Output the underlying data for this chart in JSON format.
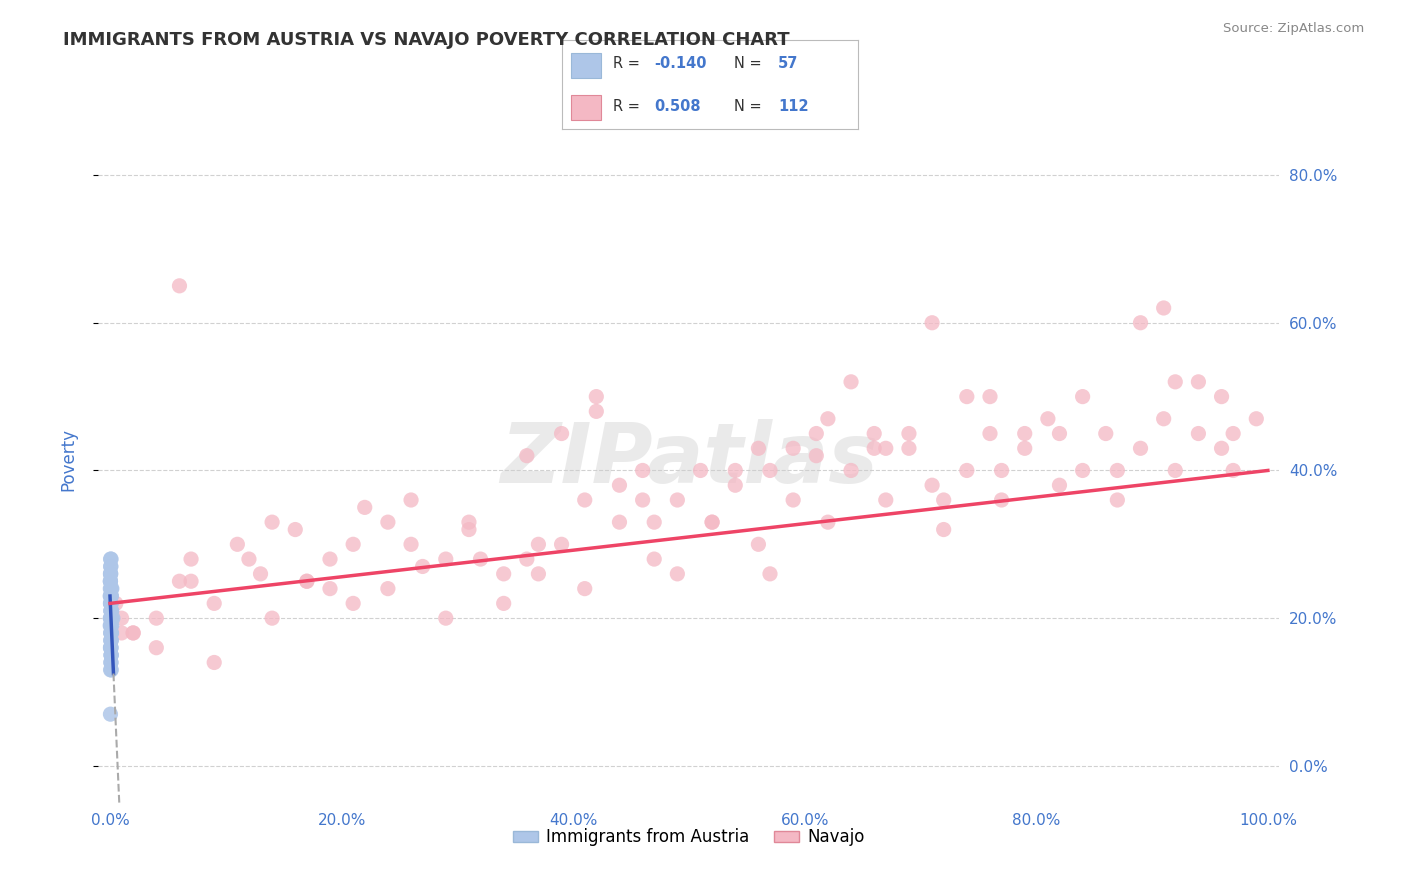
{
  "title": "IMMIGRANTS FROM AUSTRIA VS NAVAJO POVERTY CORRELATION CHART",
  "source": "Source: ZipAtlas.com",
  "ylabel": "Poverty",
  "watermark": "ZIPatlas",
  "legend_label1": "Immigrants from Austria",
  "legend_label2": "Navajo",
  "R1": -0.14,
  "N1": 57,
  "R2": 0.508,
  "N2": 112,
  "color1": "#aec6e8",
  "color2": "#f4b8c4",
  "trendline1_color": "#3355bb",
  "trendline2_color": "#ee4466",
  "background_color": "#ffffff",
  "grid_color": "#cccccc",
  "title_color": "#333333",
  "axis_label_color": "#4477cc",
  "xlim": [
    0,
    100
  ],
  "ylim": [
    -5,
    88
  ],
  "yticks": [
    0,
    20,
    40,
    60,
    80
  ],
  "xticks": [
    0,
    20,
    40,
    60,
    80,
    100
  ],
  "blue_dots_x": [
    0.05,
    0.08,
    0.1,
    0.03,
    0.06,
    0.12,
    0.04,
    0.07,
    0.09,
    0.15,
    0.02,
    0.05,
    0.08,
    0.1,
    0.13,
    0.06,
    0.04,
    0.03,
    0.09,
    0.11,
    0.16,
    0.07,
    0.05,
    0.08,
    0.04,
    0.1,
    0.06,
    0.03,
    0.12,
    0.09,
    0.05,
    0.14,
    0.07,
    0.06,
    0.11,
    0.03,
    0.08,
    0.05,
    0.1,
    0.04,
    0.07,
    0.09,
    0.13,
    0.05,
    0.06,
    0.08,
    0.04,
    0.11,
    0.03,
    0.07,
    0.15,
    0.06,
    0.09,
    0.05,
    0.08,
    0.04,
    0.25
  ],
  "blue_dots_y": [
    26,
    22,
    24,
    20,
    18,
    23,
    25,
    27,
    15,
    21,
    19,
    28,
    17,
    23,
    20,
    16,
    22,
    25,
    14,
    18,
    24,
    20,
    23,
    19,
    16,
    21,
    26,
    24,
    17,
    15,
    22,
    20,
    18,
    27,
    13,
    23,
    21,
    19,
    16,
    25,
    14,
    22,
    18,
    20,
    17,
    24,
    26,
    15,
    23,
    21,
    19,
    16,
    28,
    13,
    22,
    7,
    20
  ],
  "pink_dots_x": [
    0.5,
    1,
    2,
    4,
    6,
    7,
    9,
    11,
    13,
    14,
    16,
    17,
    19,
    21,
    22,
    24,
    26,
    27,
    29,
    31,
    32,
    34,
    36,
    37,
    39,
    41,
    42,
    44,
    46,
    47,
    49,
    51,
    52,
    54,
    56,
    57,
    59,
    61,
    62,
    64,
    66,
    67,
    69,
    71,
    72,
    74,
    76,
    77,
    79,
    81,
    82,
    84,
    86,
    87,
    89,
    91,
    92,
    94,
    96,
    97,
    99,
    71,
    64,
    79,
    84,
    89,
    91,
    94,
    49,
    54,
    59,
    62,
    69,
    74,
    41,
    46,
    52,
    56,
    29,
    34,
    37,
    19,
    24,
    7,
    12,
    1,
    4,
    17,
    21,
    26,
    31,
    36,
    44,
    47,
    57,
    61,
    66,
    76,
    82,
    87,
    92,
    96,
    6,
    14,
    39,
    42,
    67,
    72,
    77,
    97,
    2,
    9
  ],
  "pink_dots_y": [
    22,
    20,
    18,
    16,
    25,
    28,
    22,
    30,
    26,
    20,
    32,
    25,
    28,
    22,
    35,
    24,
    30,
    27,
    20,
    32,
    28,
    22,
    42,
    26,
    30,
    24,
    48,
    33,
    36,
    28,
    26,
    40,
    33,
    38,
    30,
    26,
    36,
    42,
    33,
    40,
    45,
    36,
    43,
    38,
    32,
    40,
    45,
    36,
    43,
    47,
    38,
    40,
    45,
    36,
    43,
    47,
    40,
    45,
    43,
    40,
    47,
    60,
    52,
    45,
    50,
    60,
    62,
    52,
    36,
    40,
    43,
    47,
    45,
    50,
    36,
    40,
    33,
    43,
    28,
    26,
    30,
    24,
    33,
    25,
    28,
    18,
    20,
    25,
    30,
    36,
    33,
    28,
    38,
    33,
    40,
    45,
    43,
    50,
    45,
    40,
    52,
    50,
    65,
    33,
    45,
    50,
    43,
    36,
    40,
    45,
    18,
    14
  ]
}
